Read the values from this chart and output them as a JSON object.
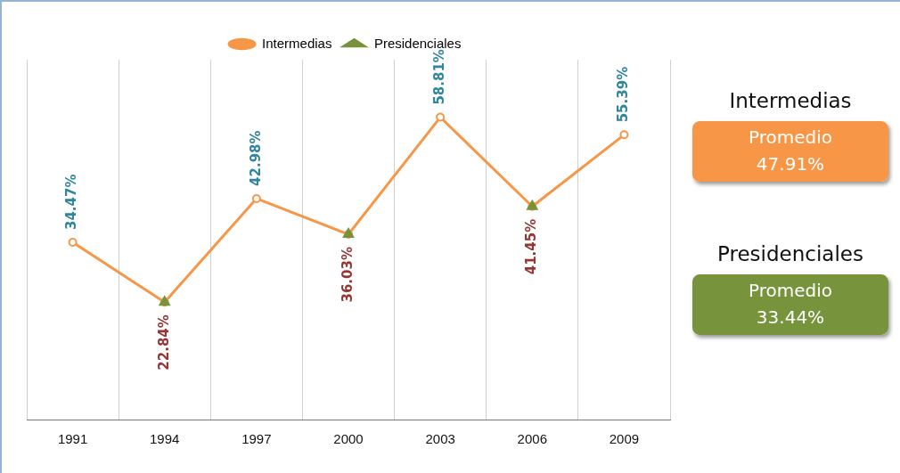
{
  "chart_data": [
    {
      "type": "line",
      "categories": [
        "1991",
        "1994",
        "1997",
        "2000",
        "2003",
        "2006",
        "2009"
      ],
      "series": [
        {
          "name": "Intermedias",
          "color": "#f79646",
          "marker": "circle",
          "values": [
            34.47,
            22.84,
            42.98,
            36.03,
            58.81,
            41.45,
            55.39
          ],
          "value_labels": [
            "34.47%",
            null,
            "42.98%",
            null,
            "58.81%",
            null,
            "55.39%"
          ]
        },
        {
          "name": "Presidenciales",
          "type": "scatter",
          "color": "#77933c",
          "marker": "triangle",
          "values": [
            null,
            22.84,
            null,
            36.03,
            null,
            41.45,
            null
          ],
          "value_labels": [
            null,
            "22.84%",
            null,
            "36.03%",
            null,
            "41.45%",
            null
          ]
        }
      ],
      "ylim": [
        0,
        70
      ],
      "tick_labels": "x",
      "grid": "x",
      "legend": "top"
    },
    {
      "type": "other",
      "annotations": [
        "Intermedias",
        "Promedio",
        "47.91%",
        "Presidenciales",
        "Promedio",
        "33.44%"
      ]
    }
  ]
}
